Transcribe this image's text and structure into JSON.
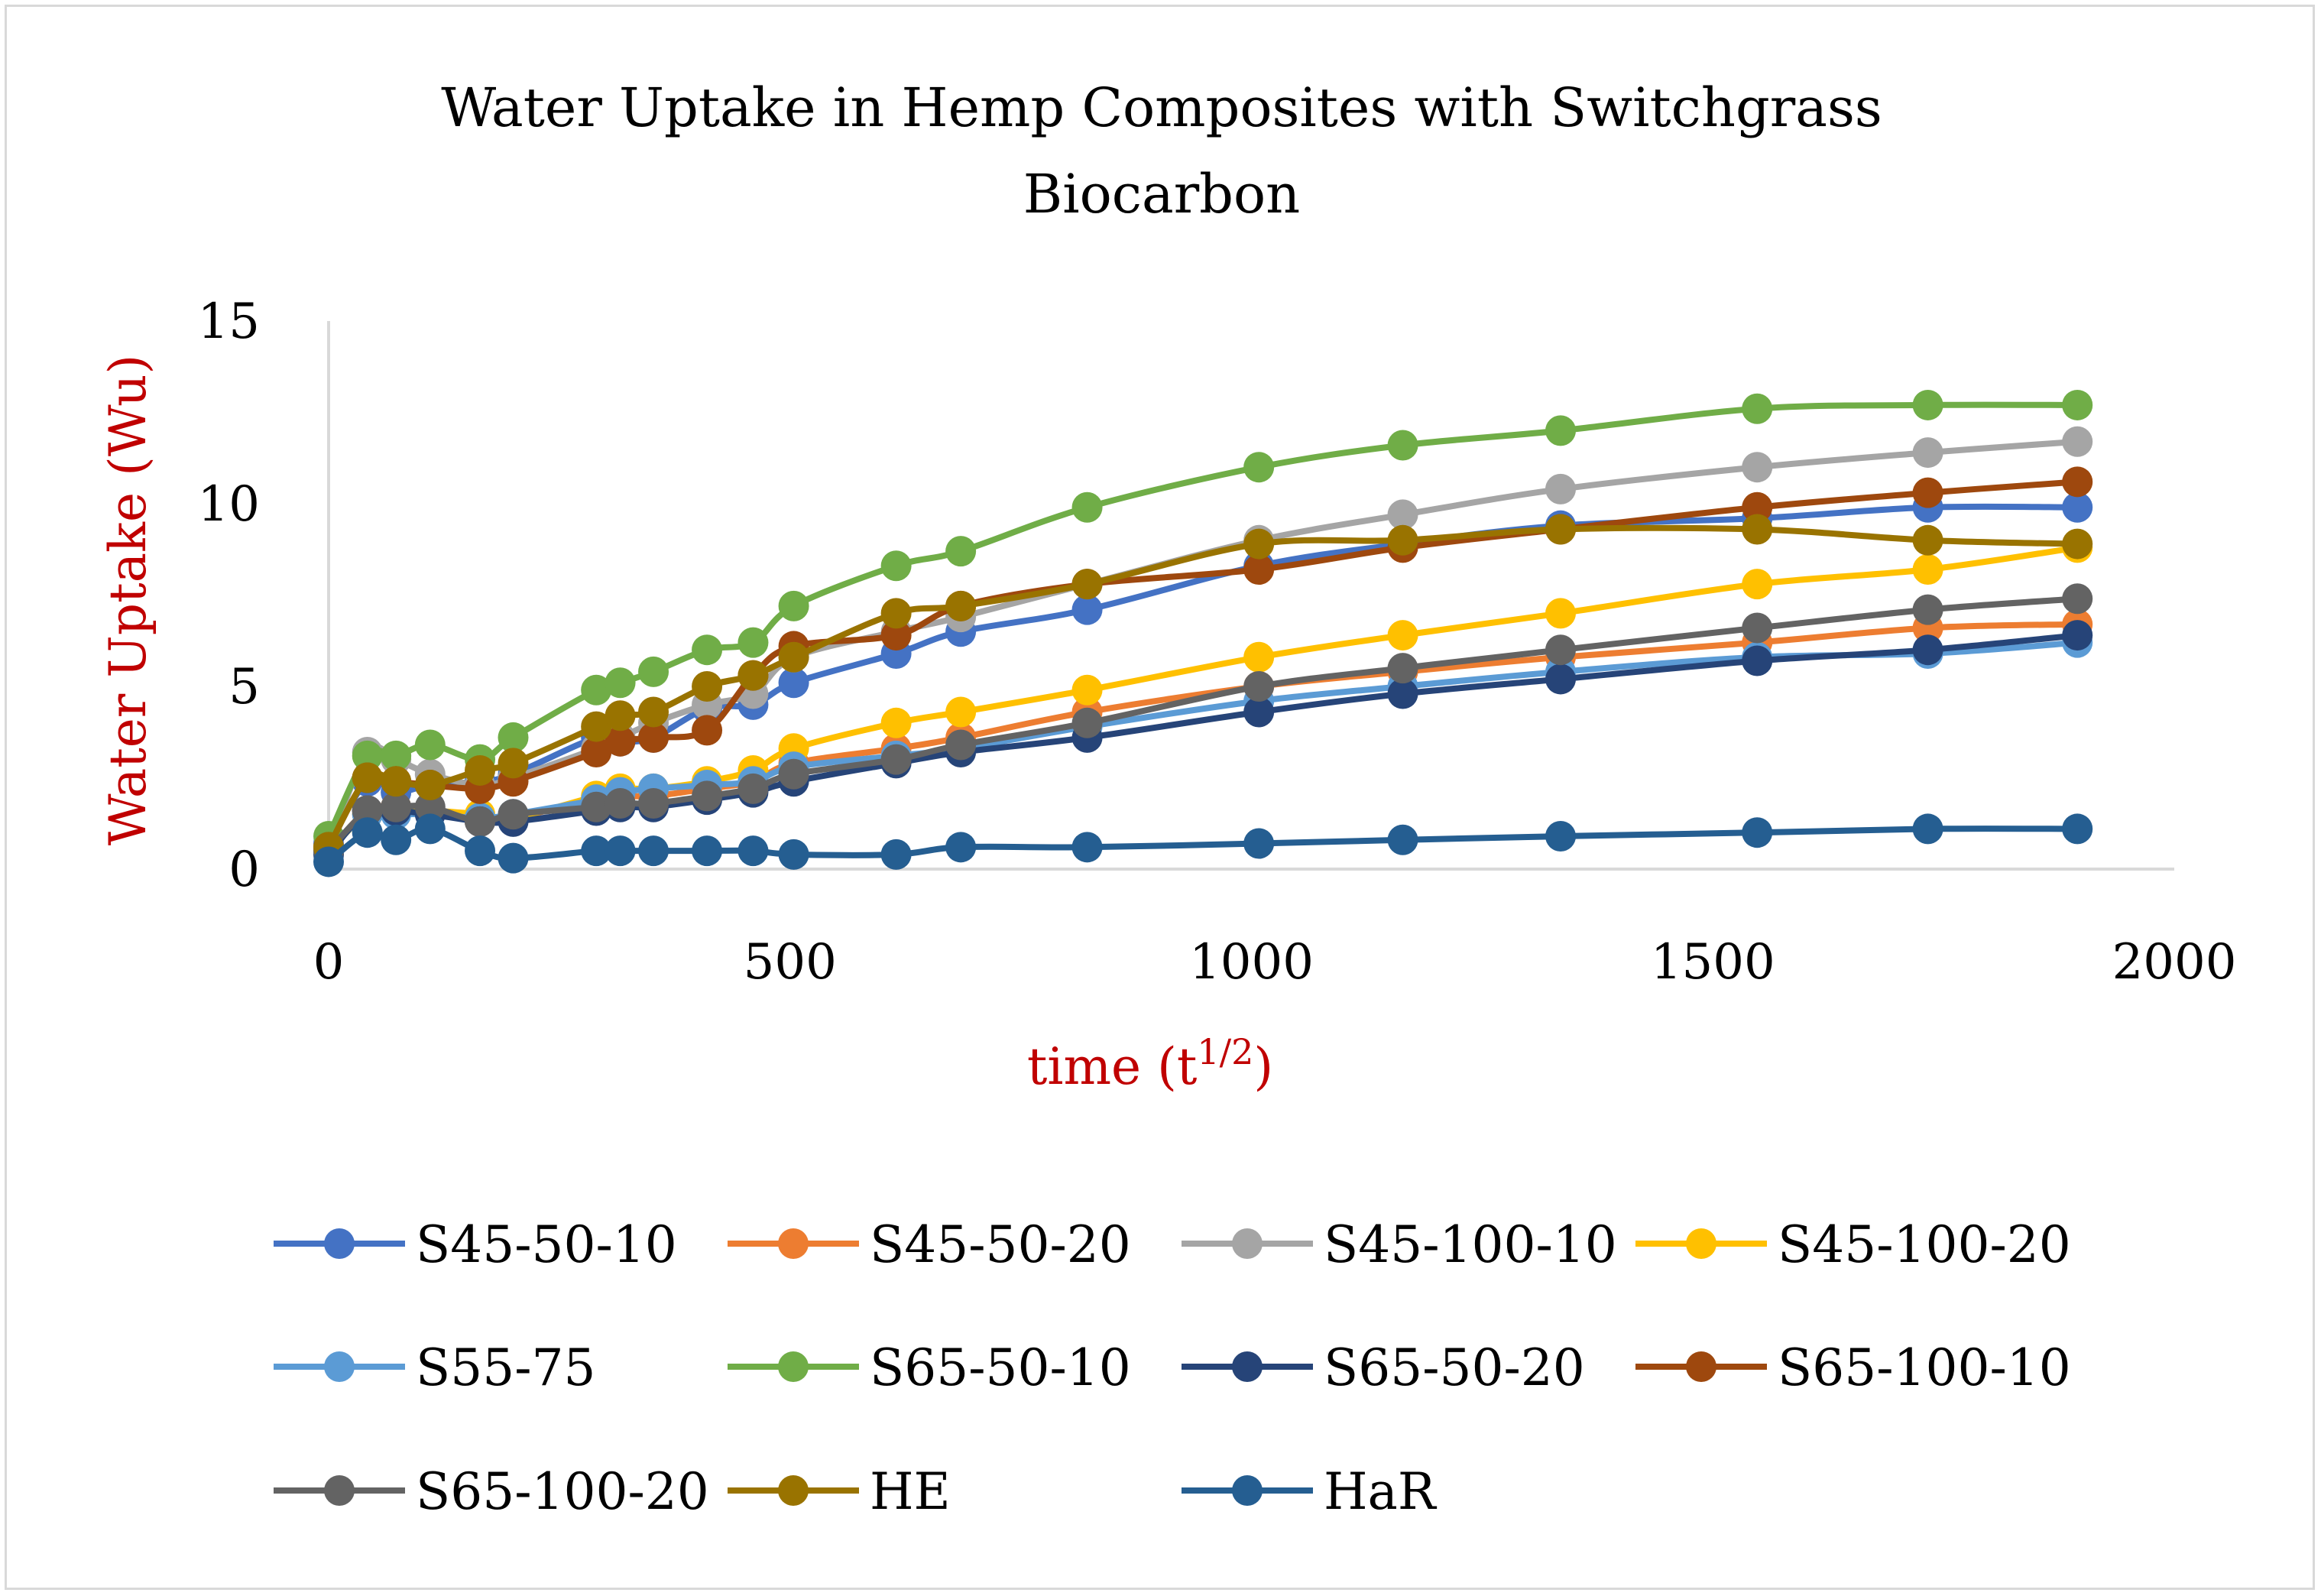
{
  "chart_data": {
    "type": "line",
    "title": "Water Uptake in Hemp Composites with Switchgrass Biocarbon",
    "title_lines": [
      "Water Uptake in Hemp Composites with Switchgrass",
      "Biocarbon"
    ],
    "xlabel_main": "time (t",
    "xlabel_sup": "1/2",
    "xlabel_close": ")",
    "ylabel": "Water Uptake (Wu)",
    "xlim": [
      0,
      2000
    ],
    "ylim": [
      0,
      15
    ],
    "xticks": [
      0,
      500,
      1000,
      1500,
      2000
    ],
    "yticks": [
      0,
      5,
      10,
      15
    ],
    "grid": false,
    "legend_position": "bottom",
    "x": [
      0,
      42,
      73,
      110,
      164,
      200,
      290,
      316,
      352,
      410,
      460,
      504,
      615,
      685,
      822,
      1008,
      1164,
      1335,
      1548,
      1733,
      1895
    ],
    "series": [
      {
        "name": "S45-50-10",
        "color": "#4472c4",
        "values": [
          0.7,
          2.4,
          2.1,
          2.3,
          2.4,
          2.6,
          3.6,
          3.5,
          3.6,
          4.4,
          4.5,
          5.1,
          5.9,
          6.5,
          7.1,
          8.3,
          8.9,
          9.4,
          9.6,
          9.9,
          9.9
        ]
      },
      {
        "name": "S45-50-20",
        "color": "#ed7d31",
        "values": [
          0.5,
          1.6,
          1.7,
          1.6,
          1.3,
          1.4,
          1.9,
          2.0,
          2.0,
          2.2,
          2.4,
          2.9,
          3.3,
          3.6,
          4.3,
          5.0,
          5.4,
          5.8,
          6.2,
          6.6,
          6.7
        ]
      },
      {
        "name": "S45-100-10",
        "color": "#a5a5a5",
        "values": [
          0.6,
          3.2,
          3.0,
          2.6,
          2.3,
          2.5,
          3.3,
          3.6,
          4.0,
          4.5,
          4.8,
          5.8,
          6.5,
          6.9,
          7.8,
          9.0,
          9.7,
          10.4,
          11.0,
          11.4,
          11.7
        ]
      },
      {
        "name": "S45-100-20",
        "color": "#ffc000",
        "values": [
          0.5,
          1.5,
          1.6,
          1.6,
          1.5,
          1.4,
          2.0,
          2.2,
          2.2,
          2.4,
          2.7,
          3.3,
          4.0,
          4.3,
          4.9,
          5.8,
          6.4,
          7.0,
          7.8,
          8.2,
          8.8
        ]
      },
      {
        "name": "S55-75",
        "color": "#5b9bd5",
        "values": [
          0.5,
          1.5,
          1.5,
          1.5,
          1.4,
          1.5,
          1.9,
          2.1,
          2.2,
          2.3,
          2.4,
          2.8,
          3.1,
          3.3,
          3.9,
          4.6,
          5.0,
          5.4,
          5.8,
          5.9,
          6.2
        ]
      },
      {
        "name": "S65-50-10",
        "color": "#70ad47",
        "values": [
          0.9,
          3.1,
          3.1,
          3.4,
          3.0,
          3.6,
          4.9,
          5.1,
          5.4,
          6.0,
          6.2,
          7.2,
          8.3,
          8.7,
          9.9,
          11.0,
          11.6,
          12.0,
          12.6,
          12.7,
          12.7
        ]
      },
      {
        "name": "S65-50-20",
        "color": "#264478",
        "values": [
          0.4,
          1.6,
          1.6,
          1.5,
          1.3,
          1.3,
          1.6,
          1.7,
          1.7,
          1.9,
          2.1,
          2.4,
          2.9,
          3.2,
          3.6,
          4.3,
          4.8,
          5.2,
          5.7,
          6.0,
          6.4
        ]
      },
      {
        "name": "S65-100-10",
        "color": "#9e480e",
        "values": [
          0.6,
          2.5,
          2.4,
          2.3,
          2.2,
          2.4,
          3.2,
          3.5,
          3.6,
          3.8,
          5.3,
          6.1,
          6.4,
          7.2,
          7.8,
          8.2,
          8.8,
          9.3,
          9.9,
          10.3,
          10.6
        ]
      },
      {
        "name": "S65-100-20",
        "color": "#636363",
        "values": [
          0.5,
          1.6,
          1.7,
          1.7,
          1.3,
          1.5,
          1.7,
          1.8,
          1.8,
          2.0,
          2.2,
          2.6,
          3.0,
          3.4,
          4.0,
          5.0,
          5.5,
          6.0,
          6.6,
          7.1,
          7.4
        ]
      },
      {
        "name": "HE",
        "color": "#997300",
        "values": [
          0.6,
          2.5,
          2.4,
          2.3,
          2.7,
          2.9,
          3.9,
          4.2,
          4.3,
          5.0,
          5.3,
          5.8,
          7.0,
          7.2,
          7.8,
          8.9,
          9.0,
          9.3,
          9.3,
          9.0,
          8.9
        ]
      },
      {
        "name": "HaR",
        "color": "#255e91",
        "values": [
          0.2,
          1.0,
          0.8,
          1.1,
          0.5,
          0.3,
          0.5,
          0.5,
          0.5,
          0.5,
          0.5,
          0.4,
          0.4,
          0.6,
          0.6,
          0.7,
          0.8,
          0.9,
          1.0,
          1.1,
          1.1
        ]
      }
    ]
  }
}
